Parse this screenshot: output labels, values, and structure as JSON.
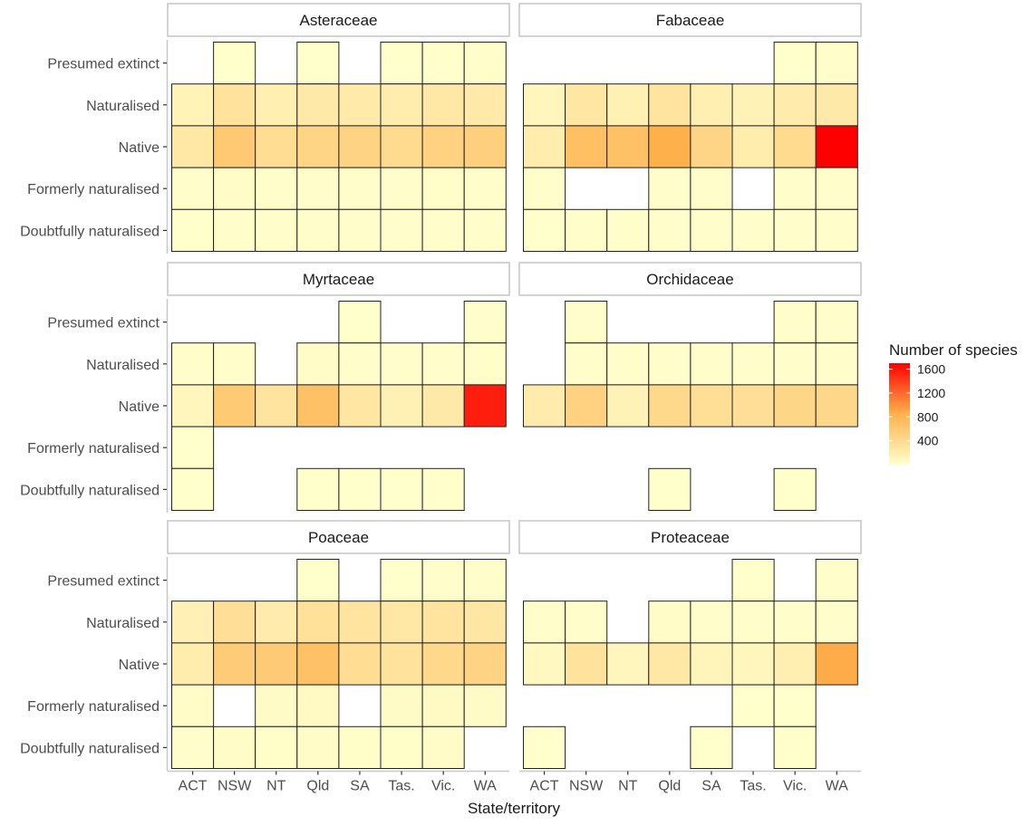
{
  "chart_data": {
    "type": "heatmap",
    "xlabel": "State/territory",
    "ylabel": "",
    "x_categories": [
      "ACT",
      "NSW",
      "NT",
      "Qld",
      "SA",
      "Tas.",
      "Vic.",
      "WA"
    ],
    "y_categories": [
      "Presumed extinct",
      "Naturalised",
      "Native",
      "Formerly naturalised",
      "Doubtfully naturalised"
    ],
    "legend": {
      "title": "Number of species",
      "ticks": [
        400,
        800,
        1200,
        1600
      ],
      "range": [
        0,
        1700
      ],
      "position": "right",
      "color_low": "#FFFFCC",
      "color_mid": "#FEB24C",
      "color_high": "#FF0000"
    },
    "grid": false,
    "panels": [
      {
        "name": "Asteraceae",
        "cells": {
          "Presumed extinct": [
            null,
            4,
            null,
            3,
            null,
            2,
            2,
            6
          ],
          "Naturalised": [
            130,
            310,
            170,
            240,
            230,
            200,
            260,
            230
          ],
          "Native": [
            250,
            600,
            380,
            470,
            480,
            400,
            500,
            520
          ],
          "Formerly naturalised": [
            10,
            30,
            12,
            20,
            18,
            15,
            25,
            20
          ],
          "Doubtfully naturalised": [
            5,
            12,
            8,
            10,
            10,
            8,
            12,
            10
          ]
        }
      },
      {
        "name": "Fabaceae",
        "cells": {
          "Presumed extinct": [
            null,
            null,
            null,
            null,
            null,
            null,
            5,
            10
          ],
          "Naturalised": [
            100,
            270,
            160,
            300,
            180,
            140,
            220,
            240
          ],
          "Native": [
            200,
            700,
            680,
            860,
            460,
            200,
            400,
            1700
          ],
          "Formerly naturalised": [
            10,
            null,
            null,
            20,
            15,
            null,
            20,
            20
          ],
          "Doubtfully naturalised": [
            5,
            10,
            8,
            10,
            8,
            6,
            10,
            10
          ]
        }
      },
      {
        "name": "Myrtaceae",
        "cells": {
          "Presumed extinct": [
            null,
            null,
            null,
            null,
            4,
            null,
            null,
            10
          ],
          "Naturalised": [
            10,
            20,
            null,
            30,
            20,
            15,
            20,
            25
          ],
          "Native": [
            100,
            590,
            300,
            680,
            280,
            160,
            240,
            1560
          ],
          "Formerly naturalised": [
            5,
            null,
            null,
            null,
            null,
            null,
            null,
            null
          ],
          "Doubtfully naturalised": [
            5,
            null,
            null,
            5,
            5,
            5,
            5,
            null
          ]
        }
      },
      {
        "name": "Orchidaceae",
        "cells": {
          "Presumed extinct": [
            null,
            6,
            null,
            null,
            null,
            null,
            10,
            10
          ],
          "Naturalised": [
            null,
            10,
            8,
            12,
            10,
            8,
            12,
            15
          ],
          "Native": [
            210,
            500,
            140,
            430,
            360,
            350,
            450,
            440
          ],
          "Formerly naturalised": [
            null,
            null,
            null,
            null,
            null,
            null,
            null,
            null
          ],
          "Doubtfully naturalised": [
            null,
            null,
            null,
            5,
            null,
            null,
            5,
            null
          ]
        }
      },
      {
        "name": "Poaceae",
        "cells": {
          "Presumed extinct": [
            null,
            null,
            null,
            5,
            null,
            5,
            10,
            10
          ],
          "Naturalised": [
            150,
            350,
            220,
            330,
            300,
            250,
            300,
            280
          ],
          "Native": [
            200,
            560,
            580,
            680,
            380,
            320,
            430,
            480
          ],
          "Formerly naturalised": [
            30,
            null,
            40,
            50,
            null,
            40,
            50,
            40
          ],
          "Doubtfully naturalised": [
            20,
            30,
            25,
            30,
            25,
            25,
            30,
            null
          ]
        }
      },
      {
        "name": "Proteaceae",
        "cells": {
          "Presumed extinct": [
            null,
            null,
            null,
            null,
            null,
            5,
            null,
            10
          ],
          "Naturalised": [
            10,
            20,
            null,
            30,
            15,
            20,
            20,
            20
          ],
          "Native": [
            80,
            320,
            100,
            260,
            120,
            100,
            180,
            880
          ],
          "Formerly naturalised": [
            null,
            null,
            null,
            null,
            null,
            5,
            5,
            null
          ],
          "Doubtfully naturalised": [
            5,
            null,
            null,
            null,
            5,
            null,
            5,
            null
          ]
        }
      }
    ]
  }
}
